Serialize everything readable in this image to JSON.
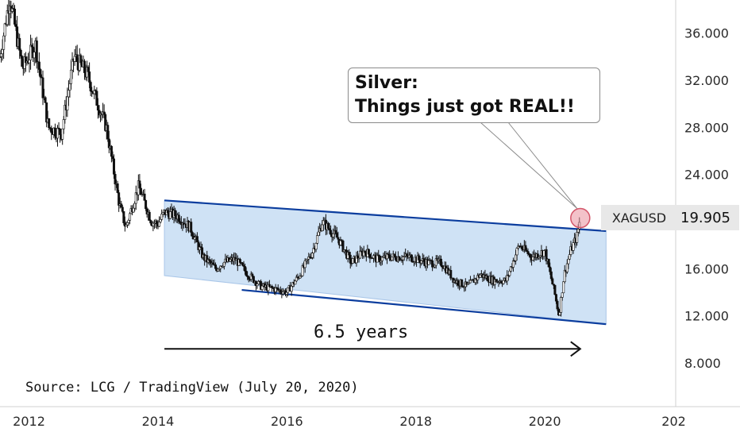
{
  "chart_data": {
    "type": "candlestick",
    "symbol": "XAGUSD",
    "last_price": "19.905",
    "y_ticks": [
      "36.000",
      "32.000",
      "28.000",
      "24.000",
      "16.000",
      "12.000",
      "8.000"
    ],
    "ylim": [
      4.3,
      38.8
    ],
    "x_ticks": [
      "2012",
      "2014",
      "2016",
      "2018",
      "2020",
      "202"
    ],
    "xlim": [
      2011.55,
      2022.03
    ],
    "series": [
      {
        "x": [
          2011.55,
          2011.7,
          2011.9,
          2012.1,
          2012.3,
          2012.5,
          2012.7,
          2012.9,
          2013.0,
          2013.2,
          2013.4,
          2013.5,
          2013.7,
          2013.9,
          2014.0,
          2014.1,
          2014.3,
          2014.5,
          2014.7,
          2014.9,
          2015.0,
          2015.2,
          2015.4,
          2015.6,
          2015.8,
          2016.0,
          2016.2,
          2016.4,
          2016.55,
          2016.8,
          2017.0,
          2017.2,
          2017.4,
          2017.6,
          2017.9,
          2018.2,
          2018.4,
          2018.6,
          2018.8,
          2019.0,
          2019.2,
          2019.4,
          2019.6,
          2019.8,
          2020.0,
          2020.15,
          2020.22,
          2020.3,
          2020.4,
          2020.5,
          2020.55
        ],
        "y": [
          34.0,
          39.0,
          33.0,
          35.0,
          28.0,
          27.5,
          34.0,
          32.5,
          31.0,
          28.0,
          21.5,
          19.5,
          23.0,
          20.0,
          19.8,
          20.8,
          20.5,
          19.5,
          17.0,
          16.0,
          16.5,
          16.8,
          15.5,
          14.5,
          14.3,
          14.0,
          15.5,
          17.5,
          20.0,
          18.5,
          16.5,
          17.5,
          16.8,
          17.0,
          17.0,
          16.5,
          16.5,
          15.0,
          14.5,
          15.5,
          15.0,
          15.0,
          18.0,
          17.0,
          17.5,
          14.0,
          12.0,
          15.5,
          17.5,
          18.8,
          20.3
        ]
      }
    ],
    "channel_upper": {
      "start": [
        2014.1,
        21.8
      ],
      "end": [
        2020.95,
        19.2
      ]
    },
    "channel_lower": {
      "start": [
        2015.3,
        14.2
      ],
      "end": [
        2020.95,
        11.3
      ]
    },
    "projection": {
      "start": [
        2014.1,
        9.2
      ],
      "end": [
        2020.55,
        9.2
      ]
    },
    "annotation": {
      "line1": "Silver:",
      "line2": "Things just got REAL!!"
    },
    "duration_label": "6.5 years",
    "source": "Source: LCG / TradingView (July 20, 2020)",
    "colors": {
      "channel_fill": "#cfe2f5",
      "channel_line": "#0b3d9e",
      "candles": "#111111",
      "highlight": "#e9909c"
    }
  }
}
